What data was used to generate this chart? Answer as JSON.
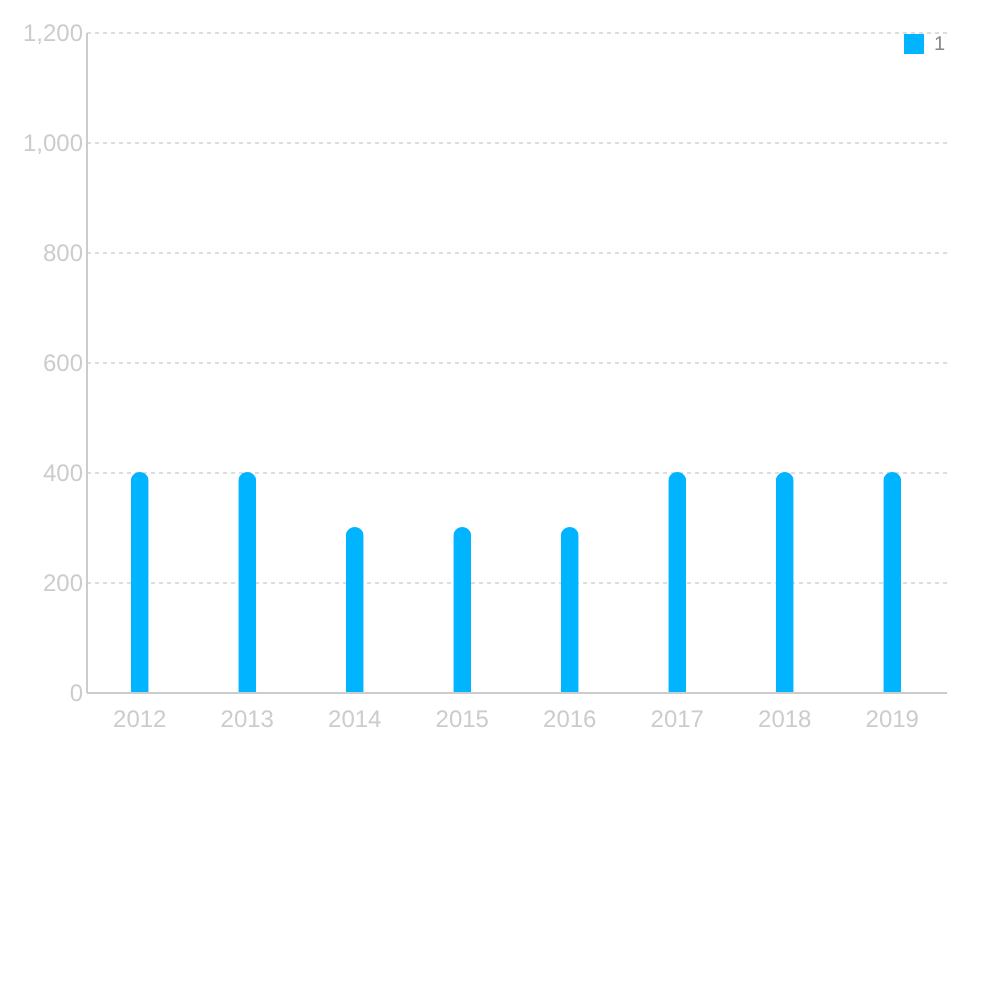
{
  "chart_data": {
    "type": "bar",
    "categories": [
      "2012",
      "2013",
      "2014",
      "2015",
      "2016",
      "2017",
      "2018",
      "2019"
    ],
    "series": [
      {
        "name": "1",
        "color": "#00b4ff",
        "values": [
          400,
          400,
          300,
          300,
          300,
          400,
          400,
          400
        ]
      }
    ],
    "ylim": [
      0,
      1200
    ],
    "yticks": [
      0,
      200,
      400,
      600,
      800,
      {
        "value": 1000,
        "label": "1,000"
      },
      {
        "value": 1200,
        "label": "1,200"
      }
    ],
    "grid": "y",
    "legend": "top right"
  }
}
